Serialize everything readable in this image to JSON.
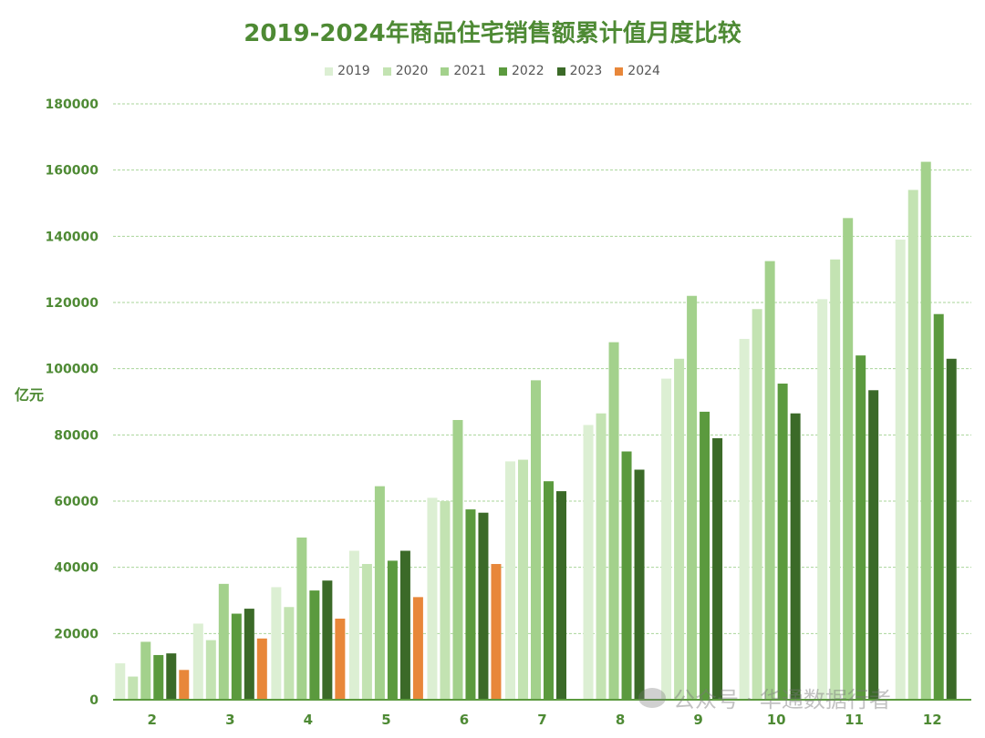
{
  "chart_data": {
    "type": "bar",
    "title": "2019-2024年商品住宅销售额累计值月度比较",
    "ylabel": "亿元",
    "xlabel": "",
    "ylim": [
      0,
      180000
    ],
    "yticks": [
      0,
      20000,
      40000,
      60000,
      80000,
      100000,
      120000,
      140000,
      160000,
      180000
    ],
    "grid": true,
    "legend_position": "top-center",
    "categories": [
      "2",
      "3",
      "4",
      "5",
      "6",
      "7",
      "8",
      "9",
      "10",
      "11",
      "12"
    ],
    "series": [
      {
        "name": "2019",
        "color": "#dcefd3",
        "values": [
          11000,
          23000,
          34000,
          45000,
          61000,
          72000,
          83000,
          97000,
          109000,
          121000,
          139000
        ]
      },
      {
        "name": "2020",
        "color": "#c3e3b2",
        "values": [
          7000,
          18000,
          28000,
          41000,
          60000,
          72500,
          86500,
          103000,
          118000,
          133000,
          154000
        ]
      },
      {
        "name": "2021",
        "color": "#a3d18c",
        "values": [
          17500,
          35000,
          49000,
          64500,
          84500,
          96500,
          108000,
          122000,
          132500,
          145500,
          162500
        ]
      },
      {
        "name": "2022",
        "color": "#5b9a3e",
        "values": [
          13500,
          26000,
          33000,
          42000,
          57500,
          66000,
          75000,
          87000,
          95500,
          104000,
          116500
        ]
      },
      {
        "name": "2023",
        "color": "#3b6a28",
        "values": [
          14000,
          27500,
          36000,
          45000,
          56500,
          63000,
          69500,
          79000,
          86500,
          93500,
          103000
        ]
      },
      {
        "name": "2024",
        "color": "#e8873a",
        "values": [
          9000,
          18500,
          24500,
          31000,
          41000,
          null,
          null,
          null,
          null,
          null,
          null
        ]
      }
    ]
  },
  "watermark": {
    "text": "公众号 · 华通数据行者",
    "icon": "wechat-icon"
  }
}
